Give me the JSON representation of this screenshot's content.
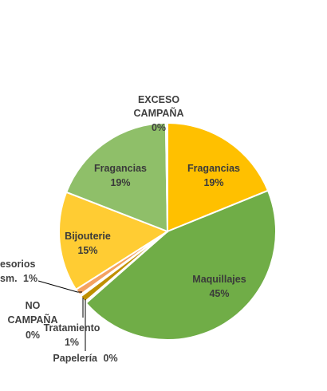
{
  "chart_data": {
    "type": "pie",
    "title": "",
    "slices": [
      {
        "id": "fragancias-1",
        "label": "Fragancias",
        "value": 19,
        "value_label": "19%",
        "color": "#ffc000"
      },
      {
        "id": "maquillajes",
        "label": "Maquillajes",
        "value": 45,
        "value_label": "45%",
        "color": "#70ad47"
      },
      {
        "id": "papeleria",
        "label": "Papelería",
        "value": 0,
        "value_label": "0%",
        "color": "#8f6b00"
      },
      {
        "id": "tratamiento",
        "label": "Tratamiento",
        "value": 1,
        "value_label": "1%",
        "color": "#bf9000"
      },
      {
        "id": "no-campana",
        "label": "NO CAMPAÑA",
        "value": 0,
        "value_label": "0%",
        "color": "#a5a5a5"
      },
      {
        "id": "accesorios",
        "label": "esorios",
        "label_line2": "sm.",
        "value": 1,
        "value_label": "1%",
        "color": "#f4a261"
      },
      {
        "id": "bijouterie",
        "label": "Bijouterie",
        "value": 15,
        "value_label": "15%",
        "color": "#ffcc33"
      },
      {
        "id": "fragancias-2",
        "label": "Fragancias",
        "value": 19,
        "value_label": "19%",
        "color": "#8fbf69"
      },
      {
        "id": "exceso-campana",
        "label": "EXCESO",
        "label_line2": "CAMPAÑA",
        "value": 0,
        "value_label": "0%",
        "color": "#d9d9d9"
      }
    ],
    "legend": "none"
  }
}
